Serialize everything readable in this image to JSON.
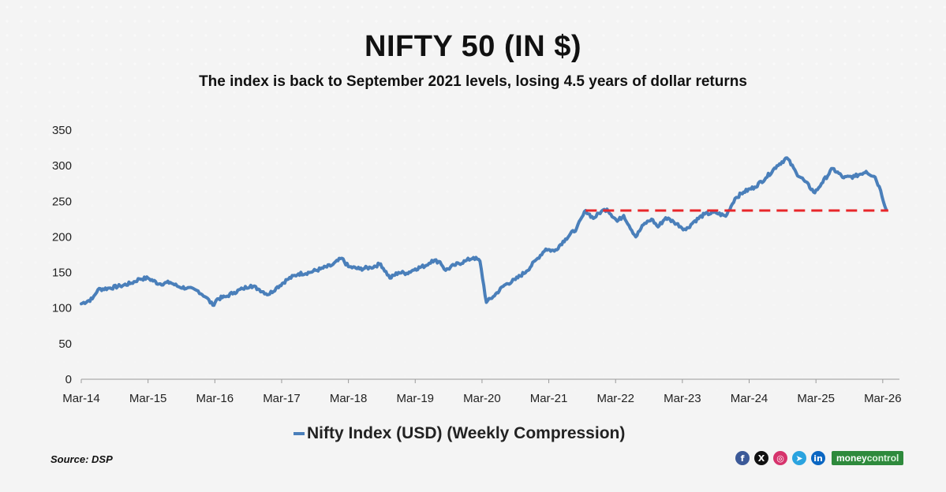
{
  "header": {
    "title": "NIFTY 50 (IN $)",
    "subtitle": "The index is back to September 2021 levels, losing 4.5 years of dollar returns"
  },
  "footer": {
    "source": "Source: DSP",
    "brand_part1": "money",
    "brand_part2": "control"
  },
  "social_icons": [
    {
      "name": "facebook-icon",
      "glyph": "f",
      "color": "#3b5998"
    },
    {
      "name": "x-icon",
      "glyph": "X",
      "color": "#111111"
    },
    {
      "name": "instagram-icon",
      "glyph": "◎",
      "color": "#d6336c"
    },
    {
      "name": "telegram-icon",
      "glyph": "➤",
      "color": "#2aa3df"
    },
    {
      "name": "linkedin-icon",
      "glyph": "in",
      "color": "#0a66c2"
    }
  ],
  "colors": {
    "line": "#4a7fba",
    "reference": "#e8262a",
    "brand": "#2e8a3c"
  },
  "chart_data": {
    "type": "line",
    "title": "NIFTY 50 (IN $)",
    "subtitle": "The index is back to September 2021 levels, losing 4.5 years of dollar returns",
    "xlabel": "",
    "ylabel": "",
    "ylim": [
      0,
      350
    ],
    "yticks": [
      0,
      50,
      100,
      150,
      200,
      250,
      300,
      350
    ],
    "xticks": [
      "Mar-14",
      "Mar-15",
      "Mar-16",
      "Mar-17",
      "Mar-18",
      "Mar-19",
      "Mar-20",
      "Mar-21",
      "Mar-22",
      "Mar-23",
      "Mar-24",
      "Mar-25",
      "Mar-26"
    ],
    "xlim": [
      "2014-03",
      "2026-06"
    ],
    "grid": false,
    "legend_position": "bottom-center",
    "series": [
      {
        "name": "Nifty Index (USD) (Weekly Compression)",
        "color": "#4a7fba",
        "points": [
          [
            "2014-03-01",
            106
          ],
          [
            "2014-05-01",
            113
          ],
          [
            "2014-06-01",
            126
          ],
          [
            "2014-08-01",
            128
          ],
          [
            "2014-10-01",
            131
          ],
          [
            "2014-12-01",
            135
          ],
          [
            "2015-01-15",
            141
          ],
          [
            "2015-03-01",
            142
          ],
          [
            "2015-05-01",
            134
          ],
          [
            "2015-07-01",
            136
          ],
          [
            "2015-08-15",
            130
          ],
          [
            "2015-10-01",
            128
          ],
          [
            "2015-12-01",
            124
          ],
          [
            "2016-01-15",
            115
          ],
          [
            "2016-02-20",
            104
          ],
          [
            "2016-03-15",
            113
          ],
          [
            "2016-05-01",
            116
          ],
          [
            "2016-06-15",
            122
          ],
          [
            "2016-08-01",
            127
          ],
          [
            "2016-09-15",
            132
          ],
          [
            "2016-11-01",
            126
          ],
          [
            "2016-12-20",
            119
          ],
          [
            "2017-02-01",
            128
          ],
          [
            "2017-04-01",
            140
          ],
          [
            "2017-06-01",
            148
          ],
          [
            "2017-08-01",
            150
          ],
          [
            "2017-10-01",
            155
          ],
          [
            "2017-12-01",
            160
          ],
          [
            "2018-01-25",
            170
          ],
          [
            "2018-03-01",
            158
          ],
          [
            "2018-05-01",
            155
          ],
          [
            "2018-07-01",
            157
          ],
          [
            "2018-08-25",
            162
          ],
          [
            "2018-10-15",
            142
          ],
          [
            "2018-12-01",
            150
          ],
          [
            "2019-01-15",
            149
          ],
          [
            "2019-03-01",
            155
          ],
          [
            "2019-05-01",
            160
          ],
          [
            "2019-06-01",
            167
          ],
          [
            "2019-07-15",
            165
          ],
          [
            "2019-08-15",
            153
          ],
          [
            "2019-10-01",
            160
          ],
          [
            "2019-12-01",
            166
          ],
          [
            "2020-01-15",
            171
          ],
          [
            "2020-02-20",
            166
          ],
          [
            "2020-03-25",
            108
          ],
          [
            "2020-05-01",
            116
          ],
          [
            "2020-07-01",
            132
          ],
          [
            "2020-09-01",
            140
          ],
          [
            "2020-11-01",
            152
          ],
          [
            "2021-01-01",
            170
          ],
          [
            "2021-02-15",
            183
          ],
          [
            "2021-04-01",
            180
          ],
          [
            "2021-06-01",
            197
          ],
          [
            "2021-08-01",
            212
          ],
          [
            "2021-09-20",
            237
          ],
          [
            "2021-11-01",
            226
          ],
          [
            "2021-12-15",
            236
          ],
          [
            "2022-01-15",
            239
          ],
          [
            "2022-03-10",
            222
          ],
          [
            "2022-04-15",
            230
          ],
          [
            "2022-06-20",
            200
          ],
          [
            "2022-08-01",
            217
          ],
          [
            "2022-09-15",
            225
          ],
          [
            "2022-10-20",
            214
          ],
          [
            "2022-12-01",
            227
          ],
          [
            "2023-01-15",
            221
          ],
          [
            "2023-03-20",
            210
          ],
          [
            "2023-05-01",
            221
          ],
          [
            "2023-07-01",
            232
          ],
          [
            "2023-09-01",
            234
          ],
          [
            "2023-10-25",
            229
          ],
          [
            "2023-12-15",
            254
          ],
          [
            "2024-02-01",
            263
          ],
          [
            "2024-04-01",
            270
          ],
          [
            "2024-06-01",
            283
          ],
          [
            "2024-08-01",
            300
          ],
          [
            "2024-09-25",
            311
          ],
          [
            "2024-11-15",
            290
          ],
          [
            "2025-01-01",
            278
          ],
          [
            "2025-02-25",
            262
          ],
          [
            "2025-04-01",
            275
          ],
          [
            "2025-06-01",
            296
          ],
          [
            "2025-08-01",
            283
          ],
          [
            "2025-10-01",
            285
          ],
          [
            "2025-12-01",
            292
          ],
          [
            "2026-01-20",
            284
          ],
          [
            "2026-02-20",
            265
          ],
          [
            "2026-03-20",
            238
          ]
        ]
      }
    ],
    "reference_line": {
      "value": 237,
      "from": "2021-09-20",
      "to": "2026-04-01",
      "style": "dashed",
      "color": "#e8262a"
    }
  }
}
